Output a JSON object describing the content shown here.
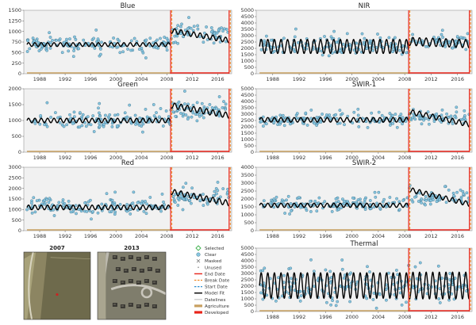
{
  "chart_data": [
    {
      "type": "scatter",
      "title": "Blue",
      "x_ticks": [
        "1988",
        "1992",
        "1996",
        "2000",
        "2004",
        "2008",
        "2012",
        "2016"
      ],
      "ylim": [
        0,
        1500
      ],
      "y_ticks": [
        "0",
        "250",
        "500",
        "750",
        "1000",
        "1250",
        "1500"
      ],
      "xlim": [
        1985.5,
        2018.2
      ],
      "break_year": 2008.6,
      "end_year": 2017.8,
      "model_fit": [
        {
          "segment": 1,
          "x_range": [
            1986,
            2008.6
          ],
          "mean": 690,
          "amplitude": 45,
          "trend_per_year": 0
        },
        {
          "segment": 2,
          "x_range": [
            2008.6,
            2017.8
          ],
          "mean": 1020,
          "amplitude": 60,
          "trend_per_year": -25
        }
      ],
      "observations": {
        "segment_1_mean": 700,
        "segment_1_spread": 140,
        "segment_2_mean": 970,
        "segment_2_spread": 160
      }
    },
    {
      "type": "scatter",
      "title": "NIR",
      "x_ticks": [
        "1988",
        "1992",
        "1996",
        "2000",
        "2004",
        "2008",
        "2012",
        "2016"
      ],
      "ylim": [
        0,
        5000
      ],
      "y_ticks": [
        "0",
        "500",
        "1000",
        "1500",
        "2000",
        "2500",
        "3000",
        "3500",
        "4000",
        "4500",
        "5000"
      ],
      "xlim": [
        1985.5,
        2018.2
      ],
      "break_year": 2008.6,
      "end_year": 2017.8,
      "model_fit": [
        {
          "segment": 1,
          "x_range": [
            1986,
            2008.6
          ],
          "mean": 2150,
          "amplitude": 550,
          "trend_per_year": 0
        },
        {
          "segment": 2,
          "x_range": [
            2008.6,
            2017.8
          ],
          "mean": 2550,
          "amplitude": 320,
          "trend_per_year": -20
        }
      ],
      "observations": {
        "segment_1_mean": 2200,
        "segment_1_spread": 500,
        "segment_2_mean": 2500,
        "segment_2_spread": 420
      }
    },
    {
      "type": "scatter",
      "title": "Green",
      "x_ticks": [
        "1988",
        "1992",
        "1996",
        "2000",
        "2004",
        "2008",
        "2012",
        "2016"
      ],
      "ylim": [
        0,
        2000
      ],
      "y_ticks": [
        "0",
        "500",
        "1000",
        "1500",
        "2000"
      ],
      "xlim": [
        1985.5,
        2018.2
      ],
      "break_year": 2008.6,
      "end_year": 2017.8,
      "model_fit": [
        {
          "segment": 1,
          "x_range": [
            1986,
            2008.6
          ],
          "mean": 1000,
          "amplitude": 70,
          "trend_per_year": 0
        },
        {
          "segment": 2,
          "x_range": [
            2008.6,
            2017.8
          ],
          "mean": 1480,
          "amplitude": 90,
          "trend_per_year": -35
        }
      ],
      "observations": {
        "segment_1_mean": 1020,
        "segment_1_spread": 200,
        "segment_2_mean": 1350,
        "segment_2_spread": 230
      }
    },
    {
      "type": "scatter",
      "title": "SWIR-1",
      "x_ticks": [
        "1988",
        "1992",
        "1996",
        "2000",
        "2004",
        "2008",
        "2012",
        "2016"
      ],
      "ylim": [
        0,
        5000
      ],
      "y_ticks": [
        "0",
        "500",
        "1000",
        "1500",
        "2000",
        "2500",
        "3000",
        "3500",
        "4000",
        "4500",
        "5000"
      ],
      "xlim": [
        1985.5,
        2018.2
      ],
      "break_year": 2008.6,
      "end_year": 2017.8,
      "model_fit": [
        {
          "segment": 1,
          "x_range": [
            1986,
            2008.6
          ],
          "mean": 2550,
          "amplitude": 180,
          "trend_per_year": 0
        },
        {
          "segment": 2,
          "x_range": [
            2008.6,
            2017.8
          ],
          "mean": 3200,
          "amplitude": 200,
          "trend_per_year": -110
        }
      ],
      "observations": {
        "segment_1_mean": 2550,
        "segment_1_spread": 350,
        "segment_2_mean": 2750,
        "segment_2_spread": 380
      }
    },
    {
      "type": "scatter",
      "title": "Red",
      "x_ticks": [
        "1988",
        "1992",
        "1996",
        "2000",
        "2004",
        "2008",
        "2012",
        "2016"
      ],
      "ylim": [
        0,
        3000
      ],
      "y_ticks": [
        "0",
        "500",
        "1000",
        "1500",
        "2000",
        "2500",
        "3000"
      ],
      "xlim": [
        1985.5,
        2018.2
      ],
      "break_year": 2008.6,
      "end_year": 2017.8,
      "model_fit": [
        {
          "segment": 1,
          "x_range": [
            1986,
            2008.6
          ],
          "mean": 1100,
          "amplitude": 110,
          "trend_per_year": 0
        },
        {
          "segment": 2,
          "x_range": [
            2008.6,
            2017.8
          ],
          "mean": 1850,
          "amplitude": 130,
          "trend_per_year": -60
        }
      ],
      "observations": {
        "segment_1_mean": 1150,
        "segment_1_spread": 280,
        "segment_2_mean": 1600,
        "segment_2_spread": 300
      }
    },
    {
      "type": "scatter",
      "title": "SWIR-2",
      "x_ticks": [
        "1988",
        "1992",
        "1996",
        "2000",
        "2004",
        "2008",
        "2012",
        "2016"
      ],
      "ylim": [
        0,
        4000
      ],
      "y_ticks": [
        "0",
        "500",
        "1000",
        "1500",
        "2000",
        "2500",
        "3000",
        "3500",
        "4000"
      ],
      "xlim": [
        1985.5,
        2018.2
      ],
      "break_year": 2008.6,
      "end_year": 2017.8,
      "model_fit": [
        {
          "segment": 1,
          "x_range": [
            1986,
            2008.6
          ],
          "mean": 1600,
          "amplitude": 130,
          "trend_per_year": 0
        },
        {
          "segment": 2,
          "x_range": [
            2008.6,
            2017.8
          ],
          "mean": 2600,
          "amplitude": 150,
          "trend_per_year": -100
        }
      ],
      "observations": {
        "segment_1_mean": 1650,
        "segment_1_spread": 300,
        "segment_2_mean": 2100,
        "segment_2_spread": 330
      }
    },
    {
      "type": "scatter",
      "title": "Thermal",
      "x_ticks": [
        "1988",
        "1992",
        "1996",
        "2000",
        "2004",
        "2008",
        "2012",
        "2016"
      ],
      "ylim": [
        0,
        5000
      ],
      "y_ticks": [
        "0",
        "500",
        "1000",
        "1500",
        "2000",
        "2500",
        "3000",
        "3500",
        "4000",
        "4500",
        "5000"
      ],
      "xlim": [
        1985.5,
        2018.2
      ],
      "break_year": 2008.6,
      "end_year": 2017.8,
      "model_fit": [
        {
          "segment": 1,
          "x_range": [
            1986,
            2008.6
          ],
          "mean": 2050,
          "amplitude": 1000,
          "trend_per_year": 0
        },
        {
          "segment": 2,
          "x_range": [
            2008.6,
            2017.8
          ],
          "mean": 2050,
          "amplitude": 1050,
          "trend_per_year": 0
        }
      ],
      "observations": {
        "segment_1_mean": 2050,
        "segment_1_spread": 900,
        "segment_2_mean": 2050,
        "segment_2_spread": 900
      }
    }
  ],
  "images": [
    {
      "title": "2007"
    },
    {
      "title": "2013"
    }
  ],
  "legend": [
    {
      "label": "Selected",
      "marker": "diamond-outline",
      "color": "#3cb04a"
    },
    {
      "label": "Clear",
      "marker": "circle",
      "color": "#87c6e0"
    },
    {
      "label": "Masked",
      "marker": "x",
      "color": "#888888"
    },
    {
      "label": "Unused",
      "marker": "small-dot",
      "color": "#999999"
    },
    {
      "label": "End Date",
      "marker": "line",
      "color": "#e8241a"
    },
    {
      "label": "Break Date",
      "marker": "dash",
      "color": "#f08a24"
    },
    {
      "label": "Start Date",
      "marker": "dash",
      "color": "#2f8fd0"
    },
    {
      "label": "Model Fit",
      "marker": "line",
      "color": "#000000"
    },
    {
      "label": "Datelines",
      "marker": "line",
      "color": "#cccccc"
    },
    {
      "label": "Agriculture",
      "marker": "bar",
      "color": "#c8a060"
    },
    {
      "label": "Developed",
      "marker": "bar",
      "color": "#e8241a"
    }
  ],
  "colors": {
    "clear": "#87c6e0",
    "clear_edge": "#2f5f78",
    "fit": "#000000",
    "panel_bg": "#f1f1f1",
    "end_date": "#e8241a",
    "break_date": "#f08a24",
    "agriculture": "#c8a060",
    "developed": "#e8241a"
  }
}
